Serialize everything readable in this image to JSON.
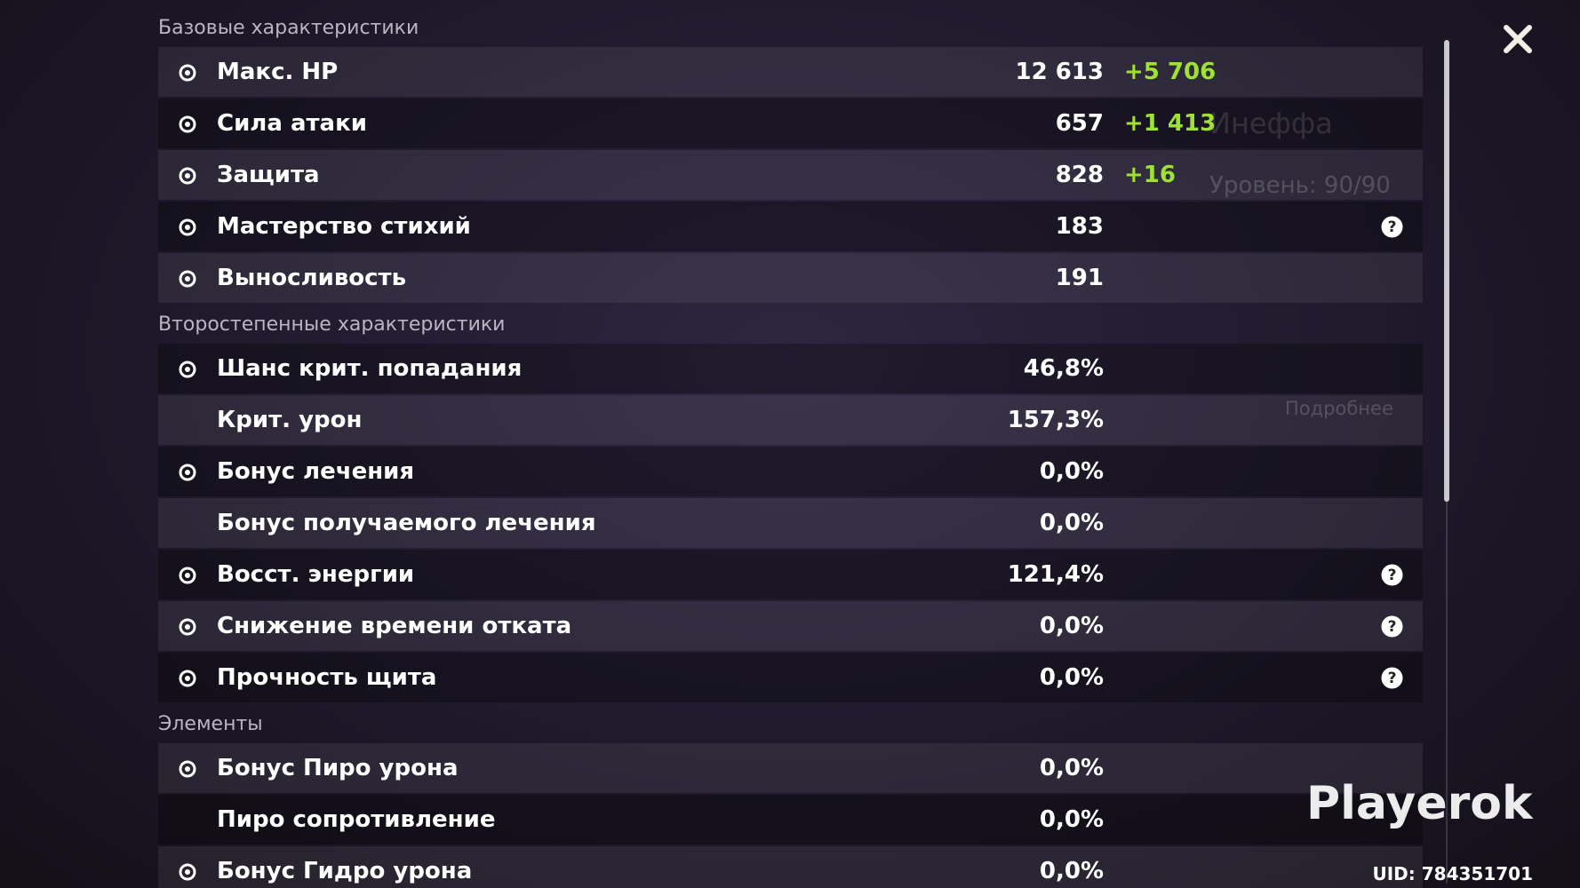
{
  "background": {
    "name": "Инеффа",
    "level": "Уровень: 90/90",
    "details": "Подробнее"
  },
  "sections": [
    {
      "title": "Базовые характеристики",
      "rows": [
        {
          "label": "Макс. HP",
          "value": "12 613",
          "bonus": "+5 706",
          "icon": true,
          "help": false
        },
        {
          "label": "Сила атаки",
          "value": "657",
          "bonus": "+1 413",
          "icon": true,
          "help": false
        },
        {
          "label": "Защита",
          "value": "828",
          "bonus": "+16",
          "icon": true,
          "help": false
        },
        {
          "label": "Мастерство стихий",
          "value": "183",
          "icon": true,
          "help": true
        },
        {
          "label": "Выносливость",
          "value": "191",
          "icon": true,
          "help": false
        }
      ]
    },
    {
      "title": "Второстепенные характеристики",
      "rows": [
        {
          "label": "Шанс крит. попадания",
          "value": "46,8%",
          "icon": true,
          "help": false
        },
        {
          "label": "Крит. урон",
          "value": "157,3%",
          "icon": false,
          "help": false
        },
        {
          "label": "Бонус лечения",
          "value": "0,0%",
          "icon": true,
          "help": false
        },
        {
          "label": "Бонус получаемого лечения",
          "value": "0,0%",
          "icon": false,
          "help": false
        },
        {
          "label": "Восст. энергии",
          "value": "121,4%",
          "icon": true,
          "help": true
        },
        {
          "label": "Снижение времени отката",
          "value": "0,0%",
          "icon": true,
          "help": true
        },
        {
          "label": "Прочность щита",
          "value": "0,0%",
          "icon": true,
          "help": true
        }
      ]
    },
    {
      "title": "Элементы",
      "rows": [
        {
          "label": "Бонус Пиро урона",
          "value": "0,0%",
          "icon": true,
          "help": false
        },
        {
          "label": "Пиро сопротивление",
          "value": "0,0%",
          "icon": false,
          "help": false
        },
        {
          "label": "Бонус Гидро урона",
          "value": "0,0%",
          "icon": true,
          "help": false
        }
      ]
    }
  ],
  "watermark": "Playerok",
  "uid": "UID: 784351701"
}
